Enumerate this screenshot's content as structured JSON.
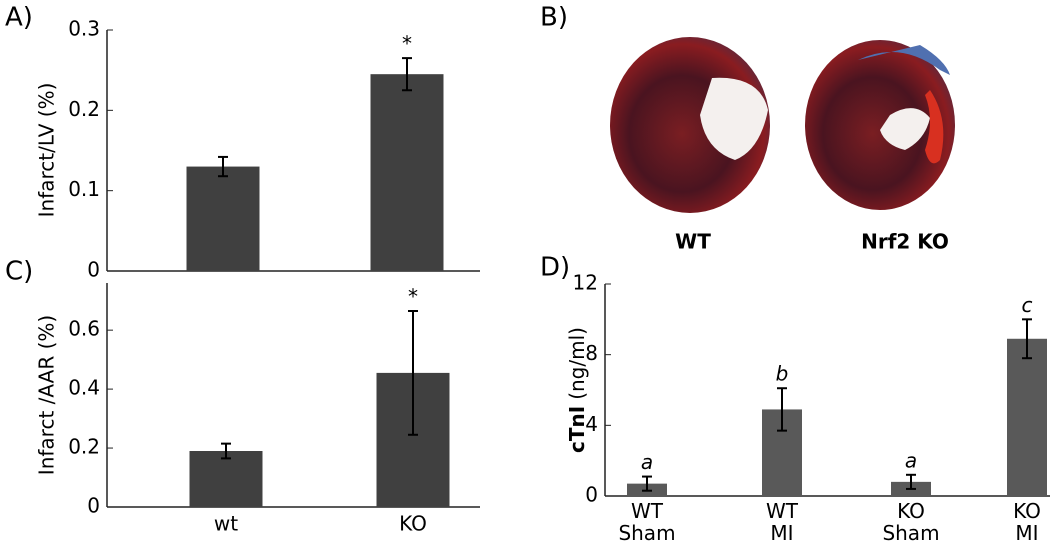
{
  "chart_data": [
    {
      "type": "bar",
      "panel": "A)",
      "ylabel": "Infarct/LV (%)",
      "categories": [
        null,
        null
      ],
      "values": [
        0.13,
        0.245
      ],
      "errors": [
        0.012,
        0.02
      ],
      "annotations": [
        null,
        "*"
      ],
      "color": "#404040",
      "ylim": [
        0,
        0.3
      ],
      "yticks": [
        0,
        0.1,
        0.2,
        0.3
      ]
    },
    {
      "type": "bar",
      "panel": "C)",
      "ylabel": "Infarct /AAR (%)",
      "categories": [
        "wt",
        "KO"
      ],
      "values": [
        0.19,
        0.455
      ],
      "errors": [
        0.025,
        0.21
      ],
      "annotations": [
        null,
        "*"
      ],
      "color": "#404040",
      "ylim": [
        0,
        0.76
      ],
      "yticks": [
        0,
        0.2,
        0.4,
        0.6
      ]
    },
    {
      "type": "bar",
      "panel": "D)",
      "ylabel": [
        "cTnI",
        "(ng/ml)"
      ],
      "categories": [
        [
          "WT",
          "Sham"
        ],
        [
          "WT",
          "MI"
        ],
        [
          "KO",
          "Sham"
        ],
        [
          "KO",
          "MI"
        ]
      ],
      "values": [
        0.7,
        4.9,
        0.8,
        8.9
      ],
      "errors": [
        0.4,
        1.2,
        0.4,
        1.1
      ],
      "annotations": [
        "a",
        "b",
        "a",
        "c"
      ],
      "annotation_style": "italic",
      "color": "#595959",
      "ylim": [
        0,
        12
      ],
      "yticks": [
        0,
        4,
        8,
        12
      ]
    }
  ],
  "image_panel": {
    "label": "B)",
    "captions": [
      "WT",
      "Nrf2 KO"
    ]
  }
}
